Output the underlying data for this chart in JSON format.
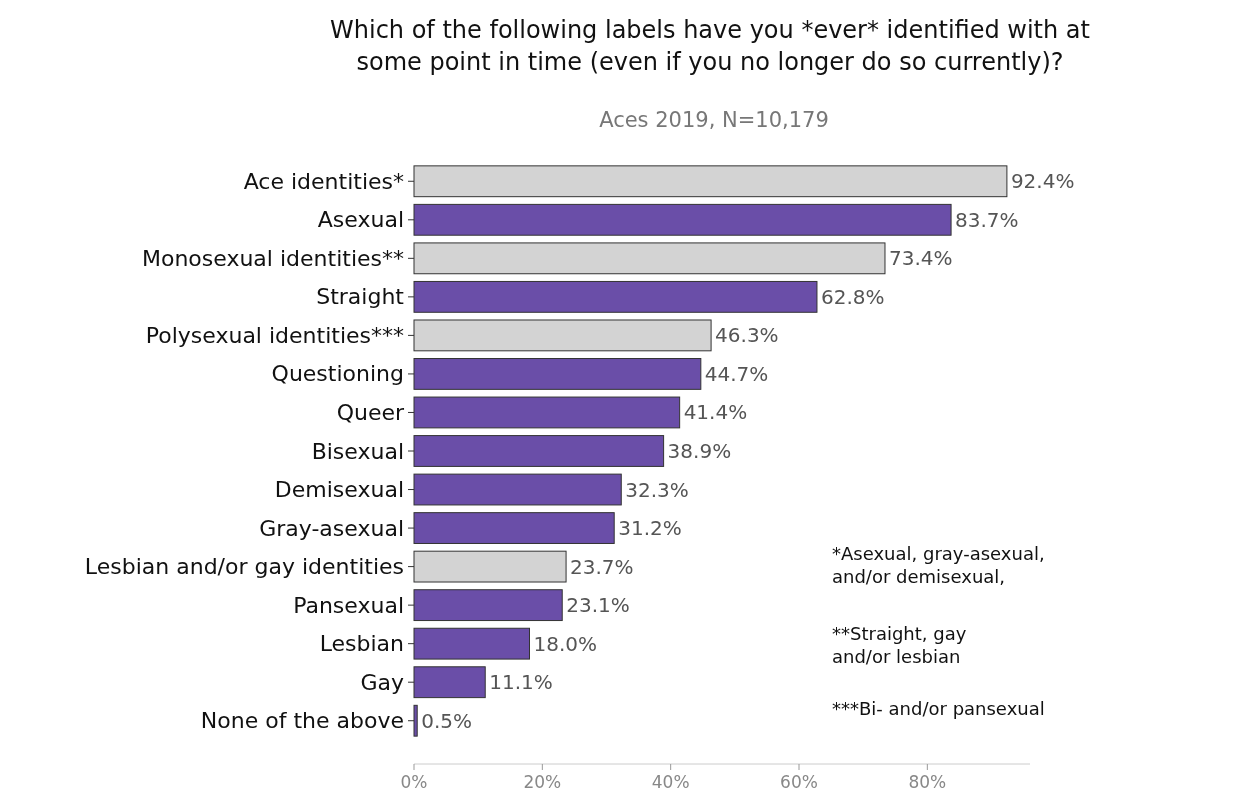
{
  "chart_data": {
    "type": "bar",
    "orientation": "horizontal",
    "title": "Which of the following labels have you *ever* identified with at\nsome point in time (even if you no longer do so currently)?",
    "subtitle": "Aces 2019, N=10,179",
    "categories": [
      "Ace identities*",
      "Asexual",
      "Monosexual identities**",
      "Straight",
      "Polysexual identities***",
      "Questioning",
      "Queer",
      "Bisexual",
      "Demisexual",
      "Gray-asexual",
      "Lesbian and/or gay identities",
      "Pansexual",
      "Lesbian",
      "Gay",
      "None of the above"
    ],
    "values": [
      92.4,
      83.7,
      73.4,
      62.8,
      46.3,
      44.7,
      41.4,
      38.9,
      32.3,
      31.2,
      23.7,
      23.1,
      18.0,
      11.1,
      0.5
    ],
    "value_labels": [
      "92.4%",
      "83.7%",
      "73.4%",
      "62.8%",
      "46.3%",
      "44.7%",
      "41.4%",
      "38.9%",
      "32.3%",
      "31.2%",
      "23.7%",
      "23.1%",
      "18.0%",
      "11.1%",
      "0.5%"
    ],
    "colors": [
      "#d3d3d3",
      "#6a4ea8",
      "#d3d3d3",
      "#6a4ea8",
      "#d3d3d3",
      "#6a4ea8",
      "#6a4ea8",
      "#6a4ea8",
      "#6a4ea8",
      "#6a4ea8",
      "#d3d3d3",
      "#6a4ea8",
      "#6a4ea8",
      "#6a4ea8",
      "#6a4ea8"
    ],
    "xticks": [
      {
        "value": 0,
        "label": "0%"
      },
      {
        "value": 20,
        "label": "20%"
      },
      {
        "value": 40,
        "label": "40%"
      },
      {
        "value": 60,
        "label": "60%"
      },
      {
        "value": 80,
        "label": "80%"
      }
    ],
    "xlim": [
      0,
      96
    ],
    "grid": false,
    "legend": false,
    "annotations": [
      "*Asexual, gray-asexual,\nand/or demisexual,",
      "**Straight, gay\nand/or lesbian",
      "***Bi- and/or pansexual"
    ]
  }
}
